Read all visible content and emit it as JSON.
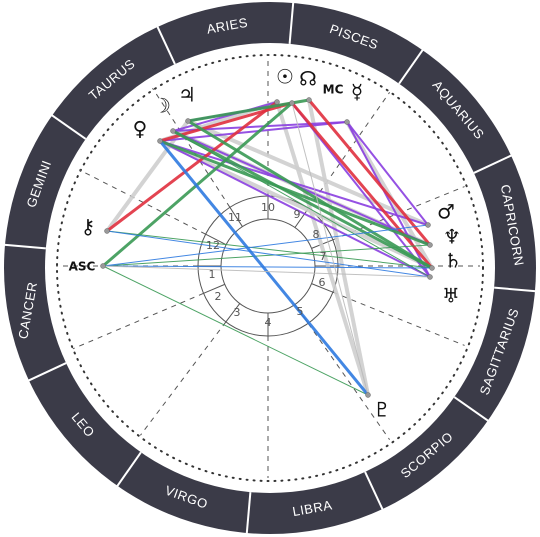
{
  "zodiac_signs": [
    "ARIES",
    "PISCES",
    "AQUARIUS",
    "CAPRICORN",
    "SAGITTARIUS",
    "SCORPIO",
    "LIBRA",
    "VIRGO",
    "LEO",
    "CANCER",
    "GEMINI",
    "TAURUS"
  ],
  "houses": [
    "1",
    "2",
    "3",
    "4",
    "5",
    "6",
    "7",
    "8",
    "9",
    "10",
    "11",
    "12"
  ],
  "points": [
    {
      "symbol": "ASC"
    },
    {
      "symbol": "⚷"
    },
    {
      "symbol": "♀"
    },
    {
      "symbol": "☽"
    },
    {
      "symbol": "♃"
    },
    {
      "symbol": "☉"
    },
    {
      "symbol": "☊"
    },
    {
      "symbol": "MC"
    },
    {
      "symbol": "☿"
    },
    {
      "symbol": "♂"
    },
    {
      "symbol": "♆"
    },
    {
      "symbol": "♄"
    },
    {
      "symbol": "♅"
    },
    {
      "symbol": "♇"
    }
  ]
}
